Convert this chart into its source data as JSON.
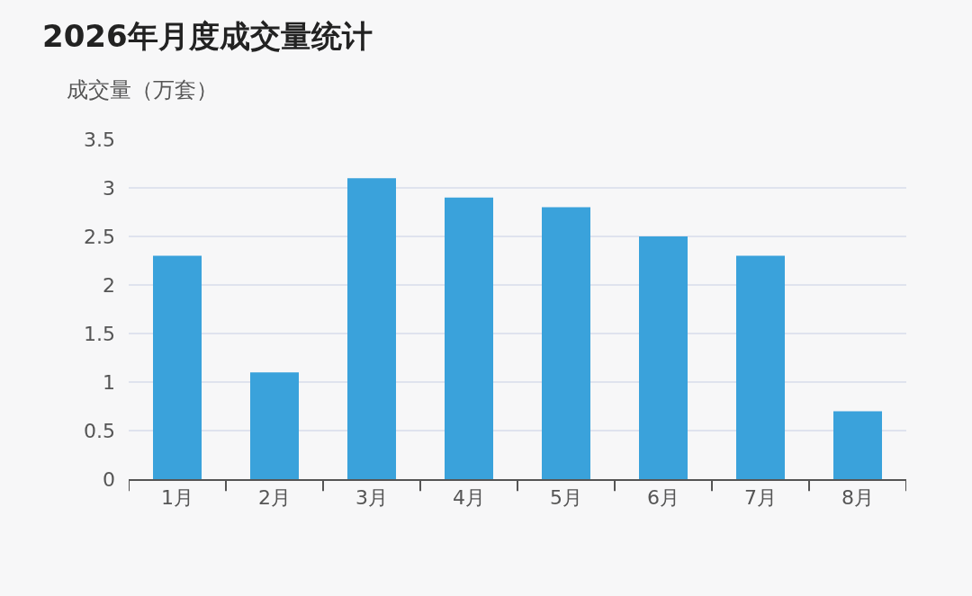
{
  "chart_data": {
    "type": "bar",
    "title": "2026年月度成交量统计",
    "ylabel": "成交量（万套）",
    "categories": [
      "1月",
      "2月",
      "3月",
      "4月",
      "5月",
      "6月",
      "7月",
      "8月"
    ],
    "values": [
      2.3,
      1.1,
      3.1,
      2.9,
      2.8,
      2.5,
      2.3,
      0.7
    ],
    "color": "#3aa2db",
    "ylim": [
      0,
      3.5
    ],
    "yticks": [
      0,
      0.5,
      1,
      1.5,
      2,
      2.5,
      3,
      3.5
    ],
    "grid": "y",
    "legend": false
  }
}
